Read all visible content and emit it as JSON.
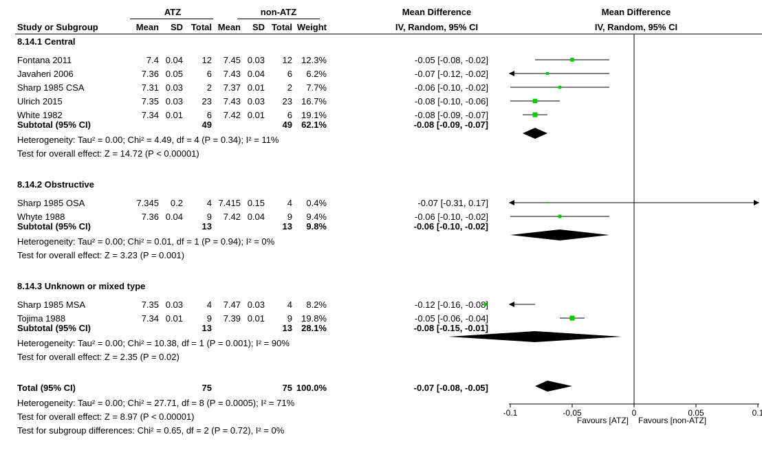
{
  "header": {
    "group1": "ATZ",
    "group2": "non-ATZ",
    "md_col_title": "Mean Difference",
    "md_col_sub": "IV, Random, 95% CI",
    "plot_title": "Mean Difference",
    "plot_sub": "IV, Random, 95% CI",
    "study_col": "Study or Subgroup",
    "mean1": "Mean",
    "sd1": "SD",
    "total1": "Total",
    "mean2": "Mean",
    "sd2": "SD",
    "total2": "Total",
    "weight": "Weight"
  },
  "subgroups": [
    {
      "title": "8.14.1 Central",
      "studies": [
        {
          "name": "Fontana 2011",
          "mean1": "7.4",
          "sd1": "0.04",
          "n1": "12",
          "mean2": "7.45",
          "sd2": "0.03",
          "n2": "12",
          "weight": "12.3%",
          "ci": "-0.05 [-0.08, -0.02]"
        },
        {
          "name": "Javaheri 2006",
          "mean1": "7.36",
          "sd1": "0.05",
          "n1": "6",
          "mean2": "7.43",
          "sd2": "0.04",
          "n2": "6",
          "weight": "6.2%",
          "ci": "-0.07 [-0.12, -0.02]"
        },
        {
          "name": "Sharp 1985 CSA",
          "mean1": "7.31",
          "sd1": "0.03",
          "n1": "2",
          "mean2": "7.37",
          "sd2": "0.01",
          "n2": "2",
          "weight": "7.7%",
          "ci": "-0.06 [-0.10, -0.02]"
        },
        {
          "name": "Ulrich 2015",
          "mean1": "7.35",
          "sd1": "0.03",
          "n1": "23",
          "mean2": "7.43",
          "sd2": "0.03",
          "n2": "23",
          "weight": "16.7%",
          "ci": "-0.08 [-0.10, -0.06]"
        },
        {
          "name": "White 1982",
          "mean1": "7.34",
          "sd1": "0.01",
          "n1": "6",
          "mean2": "7.42",
          "sd2": "0.01",
          "n2": "6",
          "weight": "19.1%",
          "ci": "-0.08 [-0.09, -0.07]"
        }
      ],
      "subtotal": {
        "label": "Subtotal (95% CI)",
        "n1": "49",
        "n2": "49",
        "weight": "62.1%",
        "ci": "-0.08 [-0.09, -0.07]"
      },
      "heterogeneity": "Heterogeneity: Tau² = 0.00; Chi² = 4.49, df = 4 (P = 0.34); I² = 11%",
      "overall": "Test for overall effect: Z = 14.72 (P < 0.00001)"
    },
    {
      "title": "8.14.2 Obstructive",
      "studies": [
        {
          "name": "Sharp 1985 OSA",
          "mean1": "7.345",
          "sd1": "0.2",
          "n1": "4",
          "mean2": "7.415",
          "sd2": "0.15",
          "n2": "4",
          "weight": "0.4%",
          "ci": "-0.07 [-0.31, 0.17]"
        },
        {
          "name": "Whyte 1988",
          "mean1": "7.36",
          "sd1": "0.04",
          "n1": "9",
          "mean2": "7.42",
          "sd2": "0.04",
          "n2": "9",
          "weight": "9.4%",
          "ci": "-0.06 [-0.10, -0.02]"
        }
      ],
      "subtotal": {
        "label": "Subtotal (95% CI)",
        "n1": "13",
        "n2": "13",
        "weight": "9.8%",
        "ci": "-0.06 [-0.10, -0.02]"
      },
      "heterogeneity": "Heterogeneity: Tau² = 0.00; Chi² = 0.01, df = 1 (P = 0.94); I² = 0%",
      "overall": "Test for overall effect: Z = 3.23 (P = 0.001)"
    },
    {
      "title": "8.14.3 Unknown or mixed type",
      "studies": [
        {
          "name": "Sharp 1985 MSA",
          "mean1": "7.35",
          "sd1": "0.03",
          "n1": "4",
          "mean2": "7.47",
          "sd2": "0.03",
          "n2": "4",
          "weight": "8.2%",
          "ci": "-0.12 [-0.16, -0.08]"
        },
        {
          "name": "Tojima 1988",
          "mean1": "7.34",
          "sd1": "0.01",
          "n1": "9",
          "mean2": "7.39",
          "sd2": "0.01",
          "n2": "9",
          "weight": "19.8%",
          "ci": "-0.05 [-0.06, -0.04]"
        }
      ],
      "subtotal": {
        "label": "Subtotal (95% CI)",
        "n1": "13",
        "n2": "13",
        "weight": "28.1%",
        "ci": "-0.08 [-0.15, -0.01]"
      },
      "heterogeneity": "Heterogeneity: Tau² = 0.00; Chi² = 10.38, df = 1 (P = 0.001); I² = 90%",
      "overall": "Test for overall effect: Z = 2.35 (P = 0.02)"
    }
  ],
  "total": {
    "label": "Total (95% CI)",
    "n1": "75",
    "n2": "75",
    "weight": "100.0%",
    "ci": "-0.07 [-0.08, -0.05]",
    "heterogeneity": "Heterogeneity: Tau² = 0.00; Chi² = 27.71, df = 8 (P = 0.0005); I² = 71%",
    "overall": "Test for overall effect: Z = 8.97 (P < 0.00001)",
    "subgroup_diff": "Test for subgroup differences: Chi² = 0.65, df = 2 (P = 0.72), I² = 0%"
  },
  "axis": {
    "ticks": [
      {
        "value": -0.1,
        "label": "-0.1"
      },
      {
        "value": -0.05,
        "label": "-0.05"
      },
      {
        "value": 0,
        "label": "0"
      },
      {
        "value": 0.05,
        "label": "0.05"
      },
      {
        "value": 0.1,
        "label": "0.1"
      }
    ],
    "favours_left": "Favours [ATZ]",
    "favours_right": "Favours [non-ATZ]"
  },
  "chart_data": {
    "type": "forest",
    "x_scale": "linear",
    "xlim": [
      -0.15,
      0.2
    ],
    "reference_line": 0,
    "marker_color": "#00cc00",
    "studies": [
      {
        "name": "Fontana 2011",
        "md": -0.05,
        "lo": -0.08,
        "hi": -0.02,
        "weight": 12.3
      },
      {
        "name": "Javaheri 2006",
        "md": -0.07,
        "lo": -0.12,
        "hi": -0.02,
        "weight": 6.2
      },
      {
        "name": "Sharp 1985 CSA",
        "md": -0.06,
        "lo": -0.1,
        "hi": -0.02,
        "weight": 7.7
      },
      {
        "name": "Ulrich 2015",
        "md": -0.08,
        "lo": -0.1,
        "hi": -0.06,
        "weight": 16.7
      },
      {
        "name": "White 1982",
        "md": -0.08,
        "lo": -0.09,
        "hi": -0.07,
        "weight": 19.1
      },
      {
        "name": "Sharp 1985 OSA",
        "md": -0.07,
        "lo": -0.31,
        "hi": 0.17,
        "weight": 0.4
      },
      {
        "name": "Whyte 1988",
        "md": -0.06,
        "lo": -0.1,
        "hi": -0.02,
        "weight": 9.4
      },
      {
        "name": "Sharp 1985 MSA",
        "md": -0.12,
        "lo": -0.16,
        "hi": -0.08,
        "weight": 8.2
      },
      {
        "name": "Tojima 1988",
        "md": -0.05,
        "lo": -0.06,
        "hi": -0.04,
        "weight": 19.8
      }
    ],
    "diamonds": [
      {
        "name": "Subtotal 8.14.1",
        "md": -0.08,
        "lo": -0.09,
        "hi": -0.07
      },
      {
        "name": "Subtotal 8.14.2",
        "md": -0.06,
        "lo": -0.1,
        "hi": -0.02
      },
      {
        "name": "Subtotal 8.14.3",
        "md": -0.08,
        "lo": -0.15,
        "hi": -0.01
      },
      {
        "name": "Total",
        "md": -0.07,
        "lo": -0.08,
        "hi": -0.05
      }
    ]
  }
}
